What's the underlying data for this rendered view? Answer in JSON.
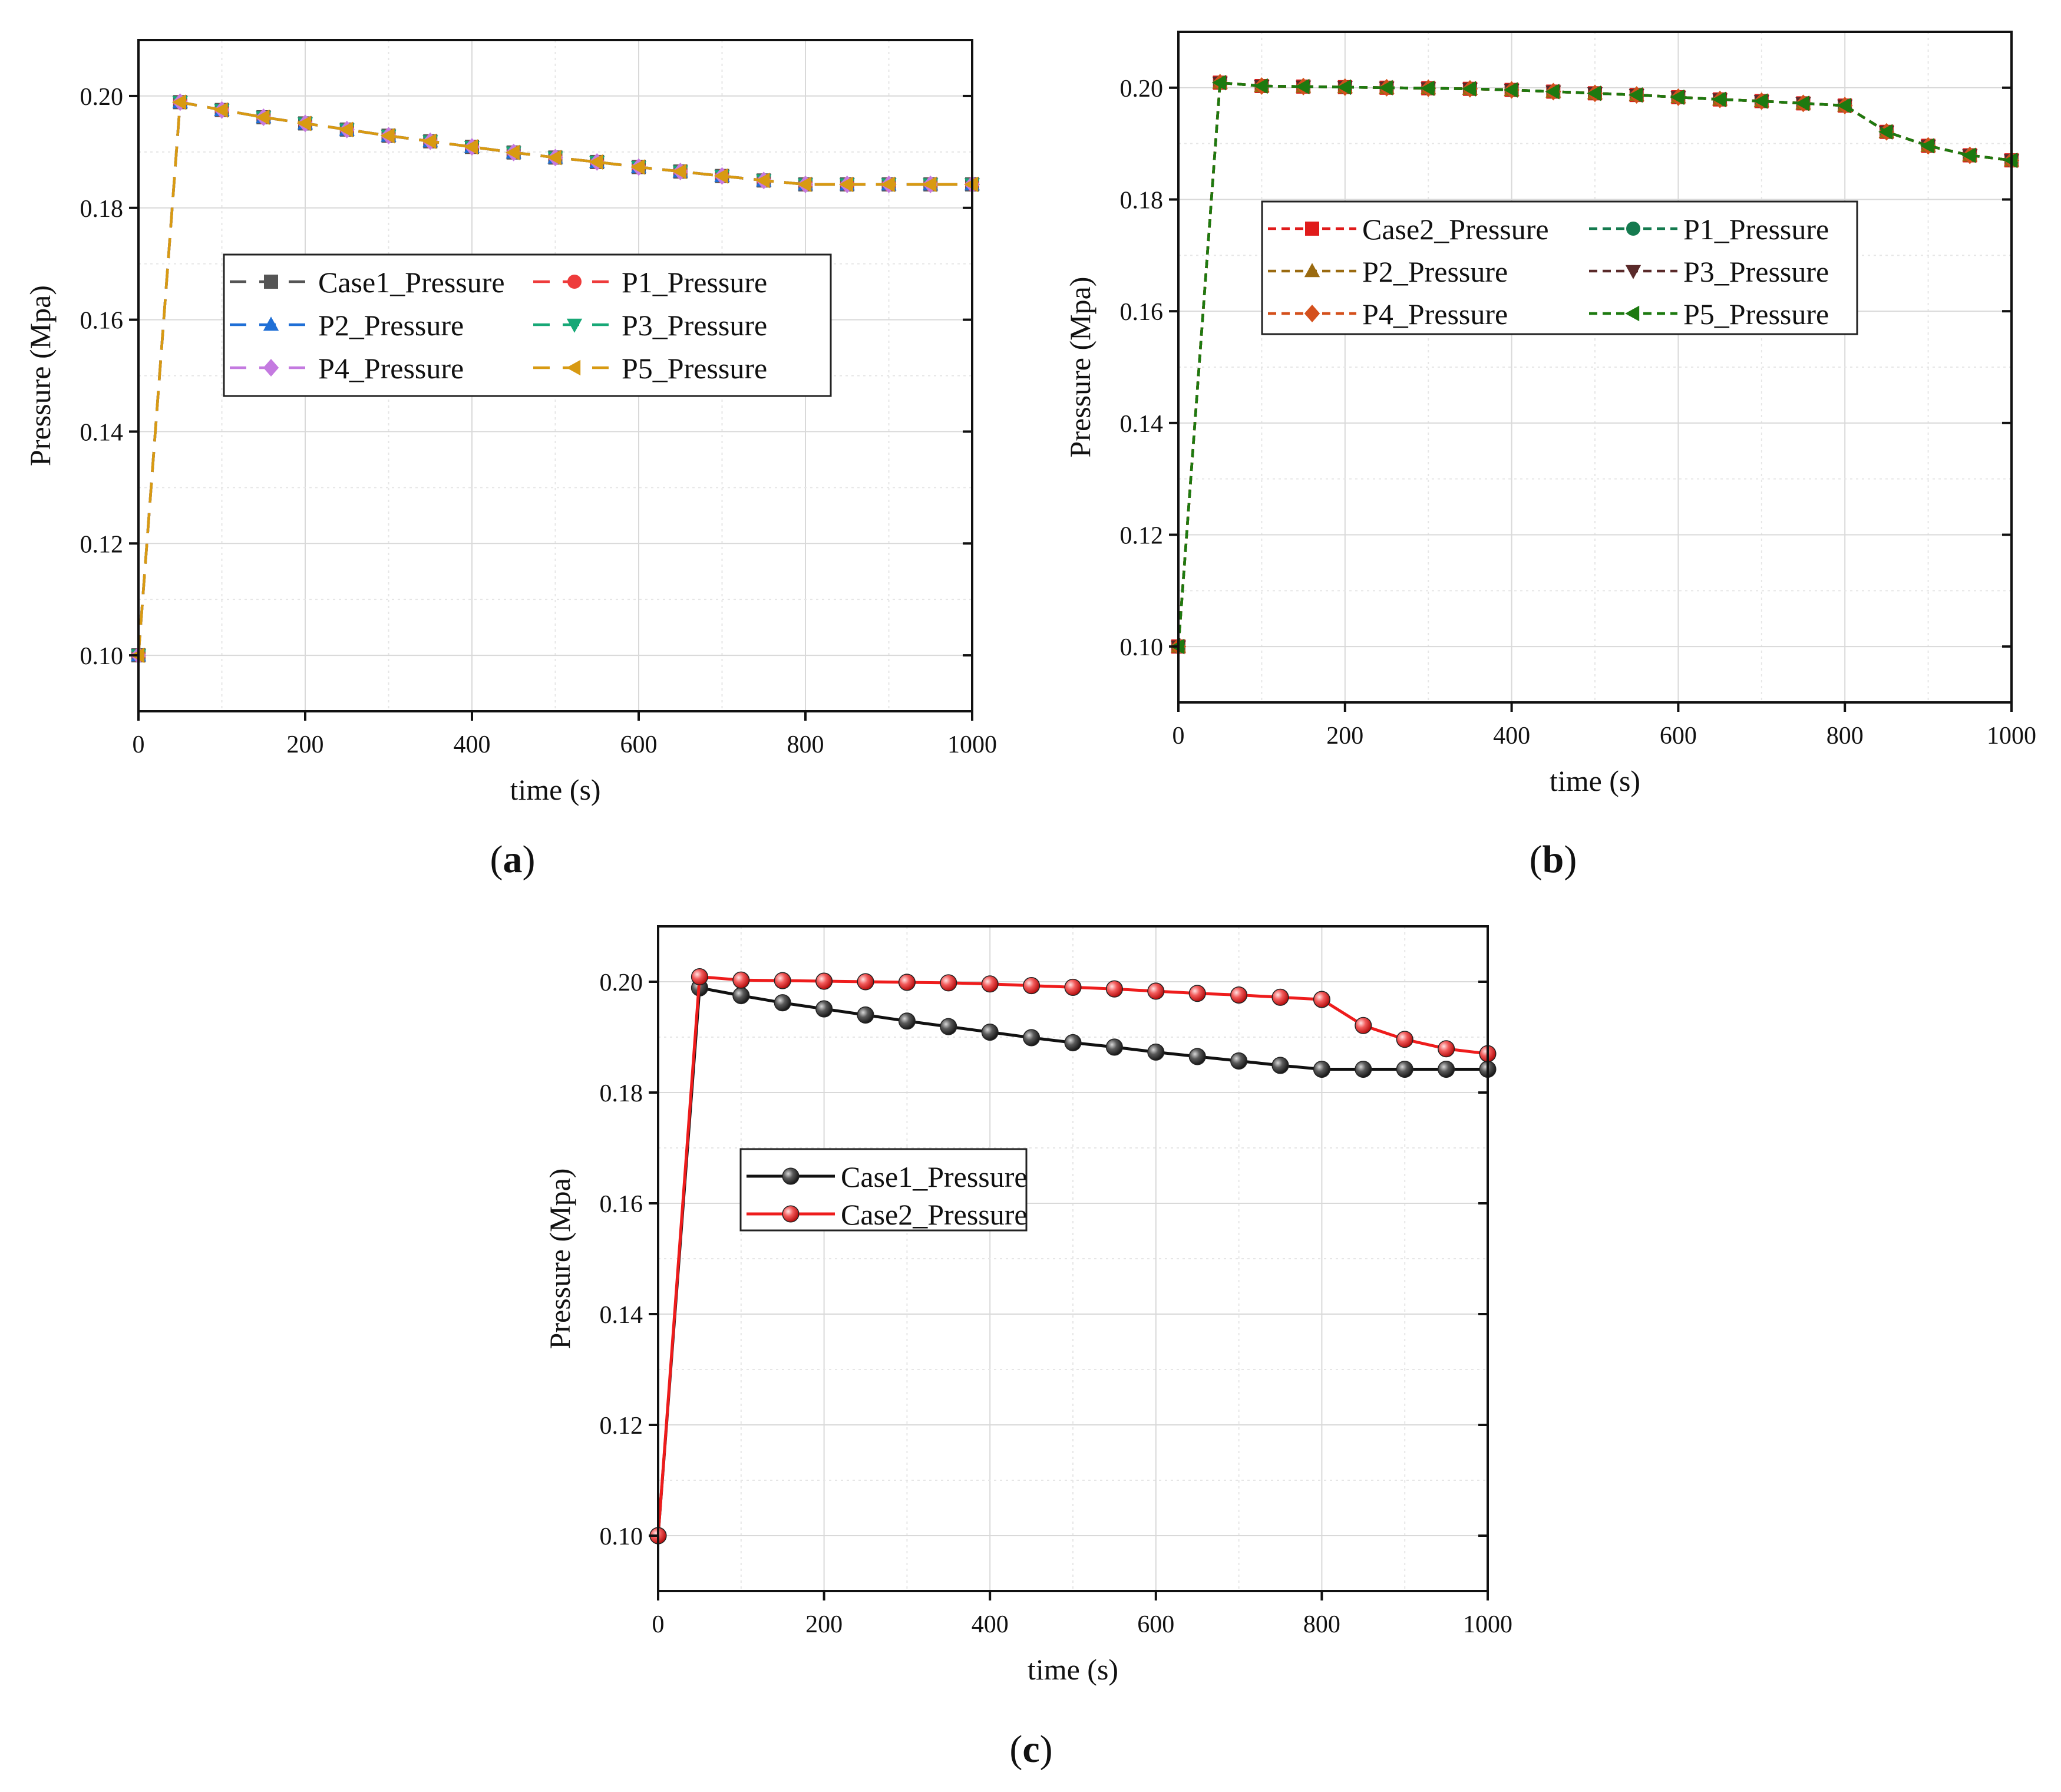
{
  "figure": {
    "panel_labels": [
      "a",
      "b",
      "c"
    ]
  },
  "chart_data": [
    {
      "id": "a",
      "type": "line",
      "title": "",
      "xlabel": "time (s)",
      "ylabel": "Pressure (Mpa)",
      "xlim": [
        0,
        1000
      ],
      "ylim": [
        0.09,
        0.21
      ],
      "xticks": [
        "0",
        "200",
        "400",
        "600",
        "800",
        "1000"
      ],
      "yticks": [
        "0.10",
        "0.12",
        "0.14",
        "0.16",
        "0.18",
        "0.20"
      ],
      "grid": true,
      "legend_columns": 2,
      "legend_placement": "center",
      "x": [
        0,
        50,
        100,
        150,
        200,
        250,
        300,
        350,
        400,
        450,
        500,
        550,
        600,
        650,
        700,
        750,
        800,
        850,
        900,
        950,
        1000
      ],
      "series": [
        {
          "name": "Case1_Pressure",
          "color": "#555555",
          "marker": "square",
          "dash": "long",
          "values": [
            0.1,
            0.1989,
            0.1975,
            0.1962,
            0.1951,
            0.194,
            0.1929,
            0.1919,
            0.1909,
            0.1899,
            0.189,
            0.1882,
            0.1873,
            0.1865,
            0.1857,
            0.1849,
            0.1842,
            0.1842,
            0.1842,
            0.1842,
            0.1842
          ]
        },
        {
          "name": "P1_Pressure",
          "color": "#ee3b3b",
          "marker": "circle",
          "dash": "long",
          "values": [
            0.1,
            0.1989,
            0.1975,
            0.1962,
            0.1951,
            0.194,
            0.1929,
            0.1919,
            0.1909,
            0.1899,
            0.189,
            0.1882,
            0.1873,
            0.1865,
            0.1857,
            0.1849,
            0.1842,
            0.1842,
            0.1842,
            0.1842,
            0.1842
          ]
        },
        {
          "name": "P2_Pressure",
          "color": "#1f6fd6",
          "marker": "triangle-up",
          "dash": "long",
          "values": [
            0.1,
            0.1989,
            0.1975,
            0.1962,
            0.1951,
            0.194,
            0.1929,
            0.1919,
            0.1909,
            0.1899,
            0.189,
            0.1882,
            0.1873,
            0.1865,
            0.1857,
            0.1849,
            0.1842,
            0.1842,
            0.1842,
            0.1842,
            0.1842
          ]
        },
        {
          "name": "P3_Pressure",
          "color": "#18a877",
          "marker": "triangle-down",
          "dash": "long",
          "values": [
            0.1,
            0.1989,
            0.1975,
            0.1962,
            0.1951,
            0.194,
            0.1929,
            0.1919,
            0.1909,
            0.1899,
            0.189,
            0.1882,
            0.1873,
            0.1865,
            0.1857,
            0.1849,
            0.1842,
            0.1842,
            0.1842,
            0.1842,
            0.1842
          ]
        },
        {
          "name": "P4_Pressure",
          "color": "#c47ae0",
          "marker": "diamond",
          "dash": "long",
          "values": [
            0.1,
            0.1989,
            0.1975,
            0.1962,
            0.1951,
            0.194,
            0.1929,
            0.1919,
            0.1909,
            0.1899,
            0.189,
            0.1882,
            0.1873,
            0.1865,
            0.1857,
            0.1849,
            0.1842,
            0.1842,
            0.1842,
            0.1842,
            0.1842
          ]
        },
        {
          "name": "P5_Pressure",
          "color": "#d89a12",
          "marker": "triangle-left",
          "dash": "long",
          "values": [
            0.1,
            0.1989,
            0.1975,
            0.1962,
            0.1951,
            0.194,
            0.1929,
            0.1919,
            0.1909,
            0.1899,
            0.189,
            0.1882,
            0.1873,
            0.1865,
            0.1857,
            0.1849,
            0.1842,
            0.1842,
            0.1842,
            0.1842,
            0.1842
          ]
        }
      ]
    },
    {
      "id": "b",
      "type": "line",
      "title": "",
      "xlabel": "time (s)",
      "ylabel": "Pressure (Mpa)",
      "xlim": [
        0,
        1000
      ],
      "ylim": [
        0.09,
        0.21
      ],
      "xticks": [
        "0",
        "200",
        "400",
        "600",
        "800",
        "1000"
      ],
      "yticks": [
        "0.10",
        "0.12",
        "0.14",
        "0.16",
        "0.18",
        "0.20"
      ],
      "grid": true,
      "legend_columns": 2,
      "legend_placement": "upper-center",
      "x": [
        0,
        50,
        100,
        150,
        200,
        250,
        300,
        350,
        400,
        450,
        500,
        550,
        600,
        650,
        700,
        750,
        800,
        850,
        900,
        950,
        1000
      ],
      "series": [
        {
          "name": "Case2_Pressure",
          "color": "#e01b1b",
          "marker": "square",
          "dash": "short",
          "values": [
            0.1,
            0.2009,
            0.2003,
            0.2002,
            0.2001,
            0.2,
            0.1999,
            0.1998,
            0.1996,
            0.1993,
            0.199,
            0.1987,
            0.1983,
            0.1979,
            0.1976,
            0.1972,
            0.1968,
            0.1921,
            0.1896,
            0.1879,
            0.187
          ]
        },
        {
          "name": "P1_Pressure",
          "color": "#157a4f",
          "marker": "circle",
          "dash": "short",
          "values": [
            0.1,
            0.2009,
            0.2003,
            0.2002,
            0.2001,
            0.2,
            0.1999,
            0.1998,
            0.1996,
            0.1993,
            0.199,
            0.1987,
            0.1983,
            0.1979,
            0.1976,
            0.1972,
            0.1968,
            0.1921,
            0.1896,
            0.1879,
            0.187
          ]
        },
        {
          "name": "P2_Pressure",
          "color": "#9a6a10",
          "marker": "triangle-up",
          "dash": "short",
          "values": [
            0.1,
            0.2009,
            0.2003,
            0.2002,
            0.2001,
            0.2,
            0.1999,
            0.1998,
            0.1996,
            0.1993,
            0.199,
            0.1987,
            0.1983,
            0.1979,
            0.1976,
            0.1972,
            0.1968,
            0.1921,
            0.1896,
            0.1879,
            0.187
          ]
        },
        {
          "name": "P3_Pressure",
          "color": "#5a2a2a",
          "marker": "triangle-down",
          "dash": "short",
          "values": [
            0.1,
            0.2009,
            0.2003,
            0.2002,
            0.2001,
            0.2,
            0.1999,
            0.1998,
            0.1996,
            0.1993,
            0.199,
            0.1987,
            0.1983,
            0.1979,
            0.1976,
            0.1972,
            0.1968,
            0.1921,
            0.1896,
            0.1879,
            0.187
          ]
        },
        {
          "name": "P4_Pressure",
          "color": "#d4501c",
          "marker": "diamond",
          "dash": "short",
          "values": [
            0.1,
            0.2009,
            0.2003,
            0.2002,
            0.2001,
            0.2,
            0.1999,
            0.1998,
            0.1996,
            0.1993,
            0.199,
            0.1987,
            0.1983,
            0.1979,
            0.1976,
            0.1972,
            0.1968,
            0.1921,
            0.1896,
            0.1879,
            0.187
          ]
        },
        {
          "name": "P5_Pressure",
          "color": "#1d7a10",
          "marker": "triangle-left",
          "dash": "short",
          "values": [
            0.1,
            0.2009,
            0.2003,
            0.2002,
            0.2001,
            0.2,
            0.1999,
            0.1998,
            0.1996,
            0.1993,
            0.199,
            0.1987,
            0.1983,
            0.1979,
            0.1976,
            0.1972,
            0.1968,
            0.1921,
            0.1896,
            0.1879,
            0.187
          ]
        }
      ]
    },
    {
      "id": "c",
      "type": "line",
      "title": "",
      "xlabel": "time (s)",
      "ylabel": "Pressure (Mpa)",
      "xlim": [
        0,
        1000
      ],
      "ylim": [
        0.09,
        0.21
      ],
      "xticks": [
        "0",
        "200",
        "400",
        "600",
        "800",
        "1000"
      ],
      "yticks": [
        "0.10",
        "0.12",
        "0.14",
        "0.16",
        "0.18",
        "0.20"
      ],
      "grid": true,
      "legend_columns": 1,
      "legend_placement": "left-middle",
      "x": [
        0,
        50,
        100,
        150,
        200,
        250,
        300,
        350,
        400,
        450,
        500,
        550,
        600,
        650,
        700,
        750,
        800,
        850,
        900,
        950,
        1000
      ],
      "series": [
        {
          "name": "Case1_Pressure",
          "color": "#111111",
          "marker": "sphere",
          "marker_color": "#3c3c3c",
          "dash": "solid",
          "values": [
            0.1,
            0.1989,
            0.1975,
            0.1962,
            0.1951,
            0.194,
            0.1929,
            0.1919,
            0.1909,
            0.1899,
            0.189,
            0.1882,
            0.1873,
            0.1865,
            0.1857,
            0.1849,
            0.1842,
            0.1842,
            0.1842,
            0.1842,
            0.1842
          ]
        },
        {
          "name": "Case2_Pressure",
          "color": "#ee1c1c",
          "marker": "sphere",
          "marker_color": "#f06060",
          "dash": "solid",
          "values": [
            0.1,
            0.2009,
            0.2003,
            0.2002,
            0.2001,
            0.2,
            0.1999,
            0.1998,
            0.1996,
            0.1993,
            0.199,
            0.1987,
            0.1983,
            0.1979,
            0.1976,
            0.1972,
            0.1968,
            0.1921,
            0.1896,
            0.1879,
            0.187
          ]
        }
      ]
    }
  ]
}
